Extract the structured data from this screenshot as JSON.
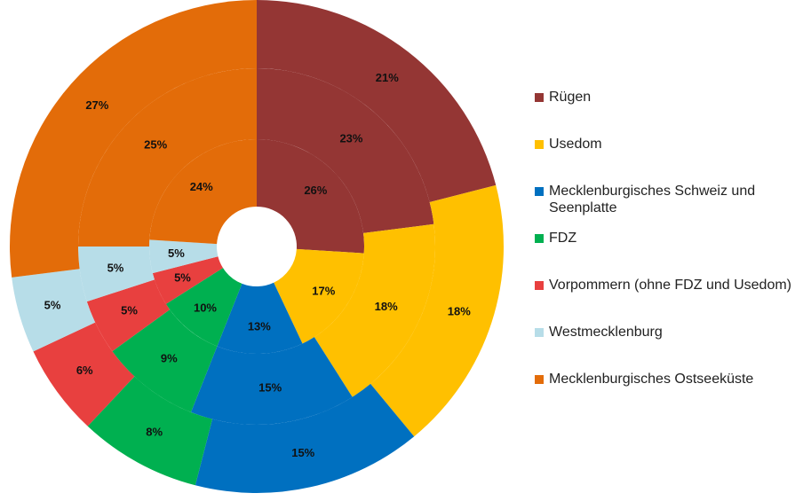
{
  "chart_data": {
    "type": "donut",
    "categories": [
      "Rügen",
      "Usedom",
      "Mecklenburgisches Schweiz und Seenplatte",
      "FDZ",
      "Vorpommern (ohne FDZ und Usedom)",
      "Westmecklenburg",
      "Mecklenburgisches Ostseeküste"
    ],
    "colors": [
      "#943634",
      "#ffc000",
      "#0070c0",
      "#00b050",
      "#e8403f",
      "#b7dde8",
      "#e36c09"
    ],
    "series": [
      {
        "values": [
          26,
          17,
          13,
          10,
          5,
          5,
          24
        ],
        "value_labels": [
          "26%",
          "17%",
          "13%",
          "10%",
          "5%",
          "5%",
          "24%"
        ]
      },
      {
        "values": [
          23,
          18,
          15,
          9,
          5,
          5,
          25
        ],
        "value_labels": [
          "23%",
          "18%",
          "15%",
          "9%",
          "5%",
          "5%",
          "25%"
        ]
      },
      {
        "values": [
          21,
          18,
          15,
          8,
          6,
          5,
          27
        ],
        "value_labels": [
          "21%",
          "18%",
          "15%",
          "8%",
          "6%",
          "5%",
          "27%"
        ]
      }
    ]
  }
}
